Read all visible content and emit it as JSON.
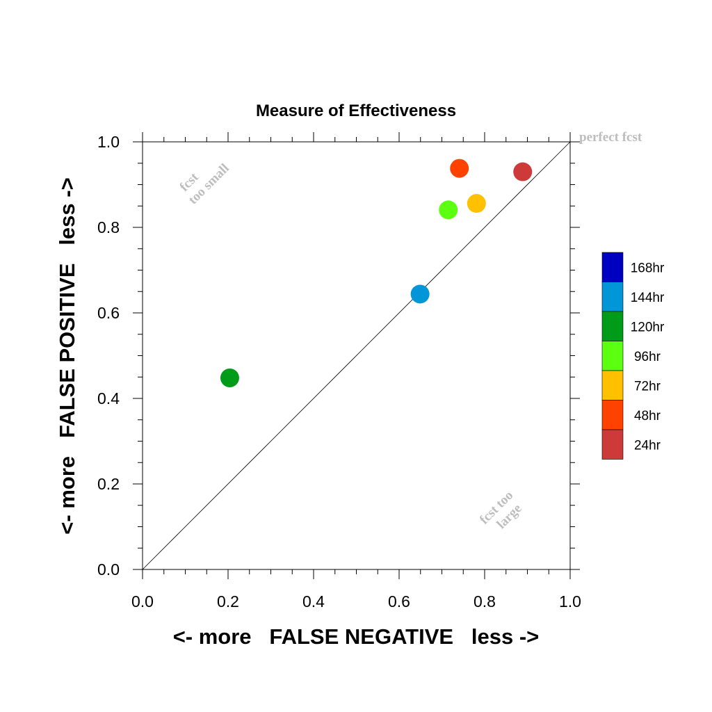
{
  "chart_data": {
    "type": "scatter",
    "title": "Measure of Effectiveness",
    "xlabel": "<- more   FALSE NEGATIVE   less ->",
    "ylabel": "<- more   FALSE POSITIVE   less ->",
    "xlim": [
      0.0,
      1.0
    ],
    "ylim": [
      0.0,
      1.0
    ],
    "xticks": [
      "0.0",
      "0.2",
      "0.4",
      "0.6",
      "0.8",
      "1.0"
    ],
    "yticks": [
      "0.0",
      "0.2",
      "0.4",
      "0.6",
      "0.8",
      "1.0"
    ],
    "grid": false,
    "reference_line": {
      "from": [
        0,
        0
      ],
      "to": [
        1,
        1
      ],
      "label": "perfect fcst"
    },
    "annotations": {
      "upper_left": [
        "fcst",
        "too small"
      ],
      "lower_right": [
        "fcst too",
        "large"
      ]
    },
    "legend_position": "right",
    "legend": [
      {
        "name": "168hr",
        "color": "#0000c0"
      },
      {
        "name": "144hr",
        "color": "#0096d8"
      },
      {
        "name": "120hr",
        "color": "#009b18"
      },
      {
        "name": "96hr",
        "color": "#5cff10"
      },
      {
        "name": "72hr",
        "color": "#ffc000"
      },
      {
        "name": "48hr",
        "color": "#ff4200"
      },
      {
        "name": "24hr",
        "color": "#cc3a3a"
      }
    ],
    "points": [
      {
        "name": "144hr",
        "x": 0.649,
        "y": 0.644,
        "color": "#0096d8"
      },
      {
        "name": "120hr",
        "x": 0.204,
        "y": 0.448,
        "color": "#009b18"
      },
      {
        "name": "96hr",
        "x": 0.715,
        "y": 0.841,
        "color": "#5cff10"
      },
      {
        "name": "72hr",
        "x": 0.781,
        "y": 0.856,
        "color": "#ffc000"
      },
      {
        "name": "48hr",
        "x": 0.741,
        "y": 0.938,
        "color": "#ff4200"
      },
      {
        "name": "24hr",
        "x": 0.889,
        "y": 0.93,
        "color": "#cc3a3a"
      }
    ]
  }
}
